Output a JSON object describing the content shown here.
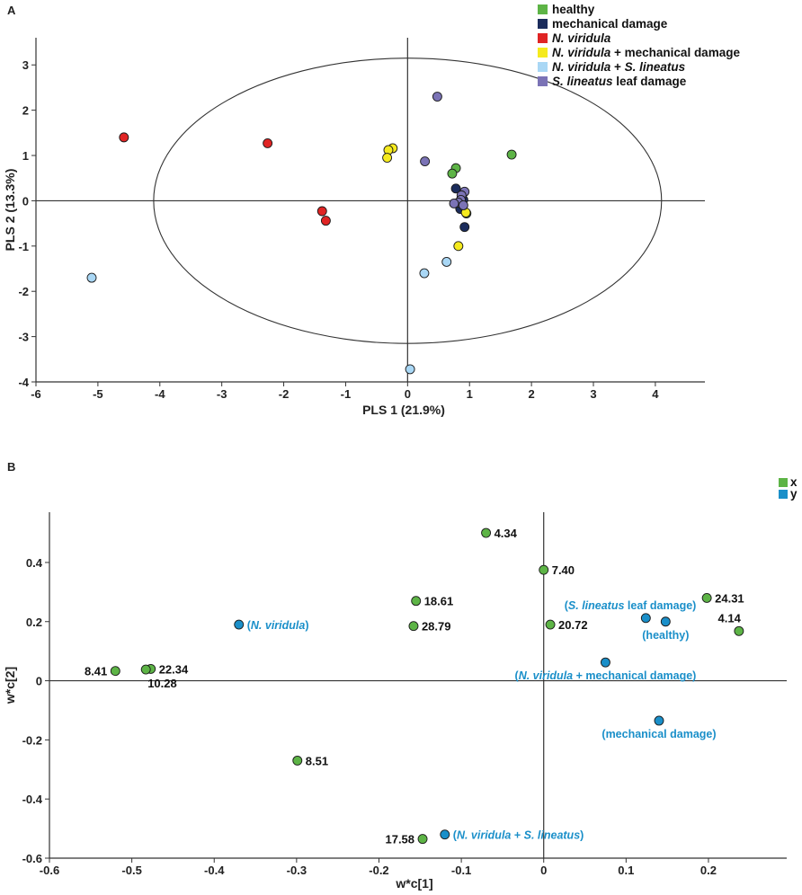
{
  "colors": {
    "healthy": "#5db446",
    "mechanical_damage": "#1b2c5c",
    "nv": "#e02424",
    "nv_mech": "#f5ea1e",
    "nv_sl": "#a9d7f5",
    "sl_leaf": "#7b73b6",
    "x": "#5db446",
    "y": "#1a8fc9",
    "ylabel": "#1a8fc9"
  },
  "chart_data": [
    {
      "type": "scatter",
      "panel": "A",
      "xlabel": "PLS 1 (21.9%)",
      "ylabel": "PLS 2 (13.3%)",
      "xlim": [
        -6,
        4.8
      ],
      "ylim": [
        -4,
        3.6
      ],
      "xticks": [
        -6,
        -5,
        -4,
        -3,
        -2,
        -1,
        0,
        1,
        2,
        3,
        4
      ],
      "yticks": [
        -4,
        -3,
        -2,
        -1,
        0,
        1,
        2,
        3
      ],
      "ellipse": {
        "cx": 0,
        "cy": 0,
        "rx": 4.1,
        "ry": 3.15
      },
      "legend": [
        {
          "key": "healthy",
          "parts": [
            {
              "t": "healthy",
              "i": false
            }
          ]
        },
        {
          "key": "mechanical_damage",
          "parts": [
            {
              "t": "mechanical damage",
              "i": false
            }
          ]
        },
        {
          "key": "nv",
          "parts": [
            {
              "t": "N. viridula",
              "i": true
            }
          ]
        },
        {
          "key": "nv_mech",
          "parts": [
            {
              "t": "N. viridula",
              "i": true
            },
            {
              "t": " + mechanical damage",
              "i": false
            }
          ]
        },
        {
          "key": "nv_sl",
          "parts": [
            {
              "t": "N. viridula",
              "i": true
            },
            {
              "t": " + ",
              "i": false
            },
            {
              "t": "S. lineatus",
              "i": true
            }
          ]
        },
        {
          "key": "sl_leaf",
          "parts": [
            {
              "t": "S. lineatus",
              "i": true
            },
            {
              "t": " leaf damage",
              "i": false
            }
          ]
        }
      ],
      "series": [
        {
          "name": "healthy",
          "color_key": "healthy",
          "points": [
            [
              1.68,
              1.02
            ],
            [
              0.78,
              0.72
            ],
            [
              0.72,
              0.6
            ],
            [
              0.95,
              -0.28
            ]
          ]
        },
        {
          "name": "mechanical damage",
          "color_key": "mechanical_damage",
          "points": [
            [
              0.78,
              0.27
            ],
            [
              0.85,
              -0.18
            ],
            [
              0.92,
              -0.58
            ],
            [
              0.9,
              0.02
            ]
          ]
        },
        {
          "name": "N. viridula",
          "color_key": "nv",
          "points": [
            [
              -4.58,
              1.4
            ],
            [
              -2.26,
              1.27
            ],
            [
              -1.38,
              -0.23
            ],
            [
              -1.32,
              -0.44
            ]
          ]
        },
        {
          "name": "N. viridula + mechanical damage",
          "color_key": "nv_mech",
          "points": [
            [
              -0.24,
              1.16
            ],
            [
              -0.31,
              1.12
            ],
            [
              -0.33,
              0.95
            ],
            [
              0.82,
              -1.0
            ],
            [
              0.94,
              -0.26
            ]
          ]
        },
        {
          "name": "N. viridula + S. lineatus",
          "color_key": "nv_sl",
          "points": [
            [
              -5.1,
              -1.7
            ],
            [
              0.27,
              -1.6
            ],
            [
              0.63,
              -1.35
            ],
            [
              0.04,
              -3.72
            ]
          ]
        },
        {
          "name": "S. lineatus leaf damage",
          "color_key": "sl_leaf",
          "points": [
            [
              0.48,
              2.3
            ],
            [
              0.28,
              0.87
            ],
            [
              0.92,
              0.2
            ],
            [
              0.87,
              0.12
            ],
            [
              0.86,
              0.02
            ],
            [
              0.82,
              -0.04
            ],
            [
              0.75,
              -0.06
            ],
            [
              0.9,
              -0.1
            ]
          ]
        }
      ]
    },
    {
      "type": "scatter",
      "panel": "B",
      "xlabel": "w*c[1]",
      "ylabel": "w*c[2]",
      "xlim": [
        -0.6,
        0.295
      ],
      "ylim": [
        -0.6,
        0.57
      ],
      "xticks": [
        "-0.6",
        "-0.5",
        "-0.4",
        "-0.3",
        "-0.2",
        "-0.1",
        "0",
        "0.1",
        "0.2"
      ],
      "yticks": [
        "-0.6",
        "-0.4",
        "-0.2",
        "0",
        "0.2",
        "0.4"
      ],
      "legend": [
        {
          "key": "x",
          "label": "x"
        },
        {
          "key": "y",
          "label": "y"
        }
      ],
      "x_points": [
        {
          "x": -0.07,
          "y": 0.5,
          "label": "4.34",
          "pos": "right"
        },
        {
          "x": 0.0,
          "y": 0.375,
          "label": "7.40",
          "pos": "right"
        },
        {
          "x": -0.155,
          "y": 0.27,
          "label": "18.61",
          "pos": "right"
        },
        {
          "x": -0.158,
          "y": 0.185,
          "label": "28.79",
          "pos": "right"
        },
        {
          "x": 0.008,
          "y": 0.19,
          "label": "20.72",
          "pos": "right"
        },
        {
          "x": 0.198,
          "y": 0.28,
          "label": "24.31",
          "pos": "right"
        },
        {
          "x": 0.237,
          "y": 0.168,
          "label": "4.14",
          "pos": "above-left"
        },
        {
          "x": -0.52,
          "y": 0.033,
          "label": "8.41",
          "pos": "left"
        },
        {
          "x": -0.477,
          "y": 0.04,
          "label": "22.34",
          "pos": "right"
        },
        {
          "x": -0.483,
          "y": 0.038,
          "label": "10.28",
          "pos": "below"
        },
        {
          "x": -0.299,
          "y": -0.27,
          "label": "8.51",
          "pos": "right"
        },
        {
          "x": -0.147,
          "y": -0.535,
          "label": "17.58",
          "pos": "left"
        }
      ],
      "y_points": [
        {
          "x": -0.37,
          "y": 0.19,
          "parts": [
            {
              "t": "(",
              "i": false
            },
            {
              "t": "N. viridula",
              "i": true
            },
            {
              "t": ")",
              "i": false
            }
          ],
          "pos": "right"
        },
        {
          "x": 0.124,
          "y": 0.212,
          "parts": [
            {
              "t": "(",
              "i": false
            },
            {
              "t": "S. lineatus",
              "i": true
            },
            {
              "t": " leaf damage)",
              "i": false
            }
          ],
          "pos": "above-left"
        },
        {
          "x": 0.148,
          "y": 0.2,
          "parts": [
            {
              "t": "(healthy)",
              "i": false
            }
          ],
          "pos": "below"
        },
        {
          "x": 0.075,
          "y": 0.062,
          "parts": [
            {
              "t": "(",
              "i": false
            },
            {
              "t": "N. viridula",
              "i": true
            },
            {
              "t": " + mechanical damage)",
              "i": false
            }
          ],
          "pos": "below"
        },
        {
          "x": 0.14,
          "y": -0.135,
          "parts": [
            {
              "t": "(mechanical damage)",
              "i": false
            }
          ],
          "pos": "below"
        },
        {
          "x": -0.12,
          "y": -0.52,
          "parts": [
            {
              "t": "(",
              "i": false
            },
            {
              "t": "N. viridula",
              "i": true
            },
            {
              "t": " + ",
              "i": false
            },
            {
              "t": "S. lineatus",
              "i": true
            },
            {
              "t": ")",
              "i": false
            }
          ],
          "pos": "right"
        }
      ]
    }
  ]
}
